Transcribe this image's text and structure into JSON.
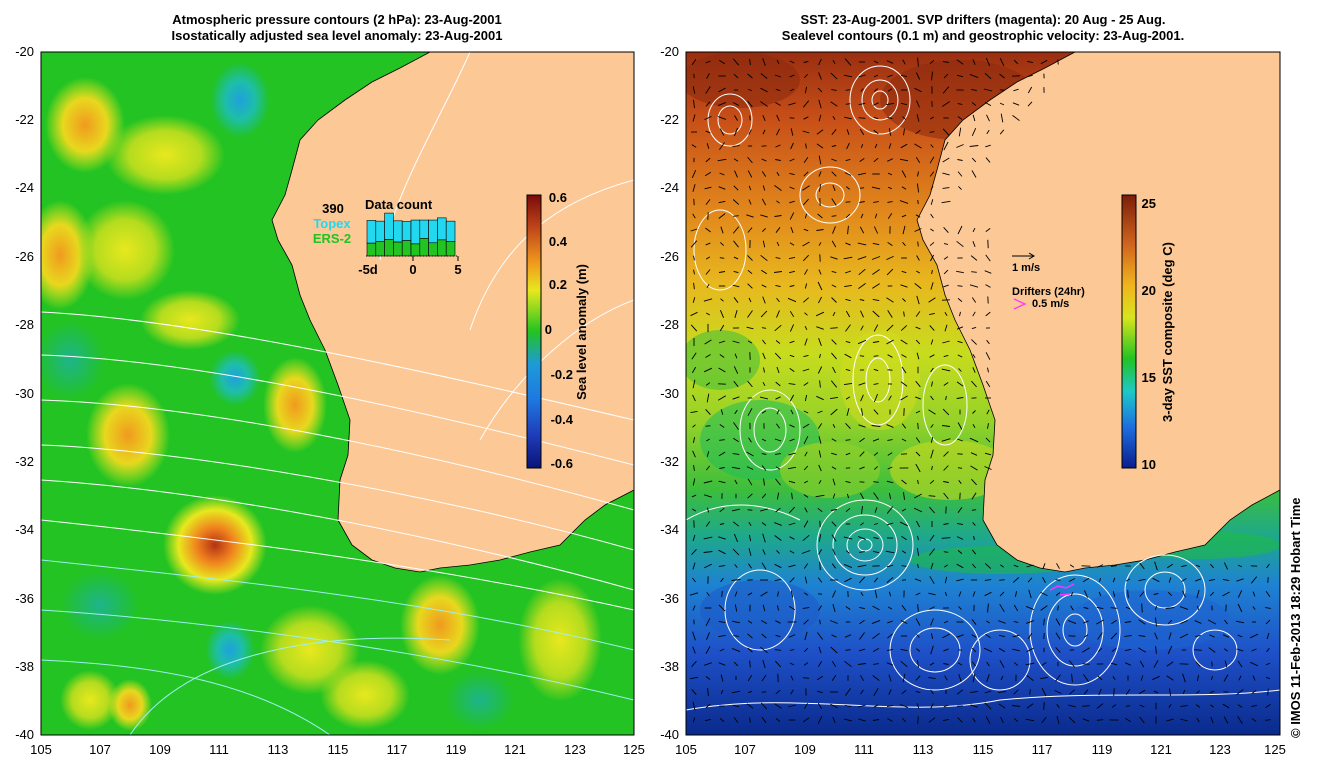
{
  "left_panel": {
    "title_line1": "Atmospheric pressure contours (2 hPa): 23-Aug-2001",
    "title_line2": "Isostatically adjusted sea level anomaly: 23-Aug-2001",
    "y_ticks": [
      "-20",
      "-22",
      "-24",
      "-26",
      "-28",
      "-30",
      "-32",
      "-34",
      "-36",
      "-38",
      "-40"
    ],
    "x_ticks": [
      "105",
      "107",
      "109",
      "111",
      "113",
      "115",
      "117",
      "119",
      "121",
      "123",
      "125"
    ],
    "inset": {
      "count": "390",
      "label1": "Topex",
      "label2": "ERS-2",
      "title": "Data count",
      "x_ticks": [
        "-5d",
        "0",
        "5"
      ],
      "topex_heights": [
        0.62,
        0.55,
        0.72,
        0.58,
        0.52,
        0.65,
        0.5,
        0.62,
        0.6,
        0.55
      ],
      "ers_heights": [
        0.35,
        0.4,
        0.45,
        0.38,
        0.42,
        0.33,
        0.48,
        0.36,
        0.44,
        0.4
      ]
    },
    "colorbar": {
      "label": "Sea level anomaly (m)",
      "ticks": [
        "0.6",
        "0.4",
        "0.2",
        "0",
        "-0.2",
        "-0.4",
        "-0.6"
      ]
    }
  },
  "right_panel": {
    "title_line1": "SST: 23-Aug-2001. SVP drifters (magenta): 20 Aug - 25 Aug.",
    "title_line2": "Sealevel contours (0.1 m) and geostrophic velocity: 23-Aug-2001.",
    "y_ticks": [
      "-20",
      "-22",
      "-24",
      "-26",
      "-28",
      "-30",
      "-32",
      "-34",
      "-36",
      "-38",
      "-40"
    ],
    "x_ticks": [
      "105",
      "107",
      "109",
      "111",
      "113",
      "115",
      "117",
      "119",
      "121",
      "123",
      "125"
    ],
    "velocity_scale": "1 m/s",
    "drifters_title": "Drifters (24hr)",
    "drifters_scale": "0.5 m/s",
    "colorbar": {
      "label": "3-day SST composite (deg C)",
      "ticks": [
        "25",
        "20",
        "15",
        "10"
      ]
    }
  },
  "credit": "© IMOS 11-Feb-2013 18:29 Hobart Time",
  "colors": {
    "land": "#fbc896",
    "sla_mid": "#22c322",
    "sst_warm": "#b03c10",
    "sst_cold": "#0a2a8c",
    "drifter": "#ff33ff",
    "topex_bar": "#22d8f0",
    "ers_bar": "#22c322"
  }
}
